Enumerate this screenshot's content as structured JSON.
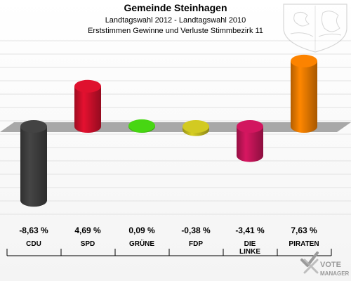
{
  "header": {
    "title": "Gemeinde Steinhagen",
    "subtitle1": "Landtagswahl 2012 - Landtagswahl 2010",
    "subtitle2": "Erststimmen Gewinne und Verluste Stimmbezirk 11"
  },
  "logo": {
    "text_line1": "VOTE",
    "text_line2": "MANAGER"
  },
  "chart_data": {
    "type": "bar",
    "title": "Gemeinde Steinhagen",
    "subtitle": "Landtagswahl 2012 - Landtagswahl 2010 / Erststimmen Gewinne und Verluste Stimmbezirk 11",
    "xlabel": "",
    "ylabel": "",
    "grid": true,
    "legend": "none",
    "categories": [
      "CDU",
      "SPD",
      "GRÜNE",
      "FDP",
      "DIE LINKE",
      "PIRATEN"
    ],
    "category_lines": [
      [
        "CDU"
      ],
      [
        "SPD"
      ],
      [
        "GRÜNE"
      ],
      [
        "FDP"
      ],
      [
        "DIE",
        "LINKE"
      ],
      [
        "PIRATEN"
      ]
    ],
    "values": [
      -8.63,
      4.69,
      0.09,
      -0.38,
      -3.41,
      7.63
    ],
    "value_labels": [
      "-8,63 %",
      "4,69 %",
      "0,09 %",
      "-0,38 %",
      "-3,41 %",
      "7,63 %"
    ],
    "colors": [
      "#404040",
      "#d4102c",
      "#44cc11",
      "#c8c020",
      "#c8155a",
      "#f07d00"
    ],
    "ylim": [
      -9,
      8
    ]
  }
}
